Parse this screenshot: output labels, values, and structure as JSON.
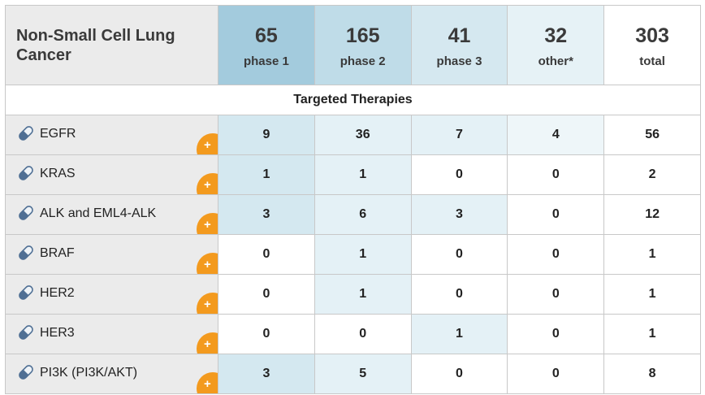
{
  "header": {
    "title": "Non-Small Cell Lung Cancer",
    "columns": [
      {
        "value": "65",
        "label": "phase 1"
      },
      {
        "value": "165",
        "label": "phase 2"
      },
      {
        "value": "41",
        "label": "phase 3"
      },
      {
        "value": "32",
        "label": "other*"
      },
      {
        "value": "303",
        "label": "total"
      }
    ]
  },
  "section_title": "Targeted Therapies",
  "rows": [
    {
      "name": "EGFR",
      "values": [
        "9",
        "36",
        "7",
        "4",
        "56"
      ]
    },
    {
      "name": "KRAS",
      "values": [
        "1",
        "1",
        "0",
        "0",
        "2"
      ]
    },
    {
      "name": "ALK and EML4-ALK",
      "values": [
        "3",
        "6",
        "3",
        "0",
        "12"
      ]
    },
    {
      "name": "BRAF",
      "values": [
        "0",
        "1",
        "0",
        "0",
        "1"
      ]
    },
    {
      "name": "HER2",
      "values": [
        "0",
        "1",
        "0",
        "0",
        "1"
      ]
    },
    {
      "name": "HER3",
      "values": [
        "0",
        "0",
        "1",
        "0",
        "1"
      ]
    },
    {
      "name": "PI3K (PI3K/AKT)",
      "values": [
        "3",
        "5",
        "0",
        "0",
        "8"
      ]
    }
  ],
  "icons": {
    "row_icon": "pill-icon",
    "expand_icon": "plus-icon"
  },
  "colors": {
    "accent_orange": "#f39a1e",
    "phase1_header": "#a3cbdd",
    "phase2_header": "#bfdce8",
    "phase3_header": "#d5e8f0",
    "other_header": "#e6f2f6",
    "label_bg": "#ebebeb"
  }
}
